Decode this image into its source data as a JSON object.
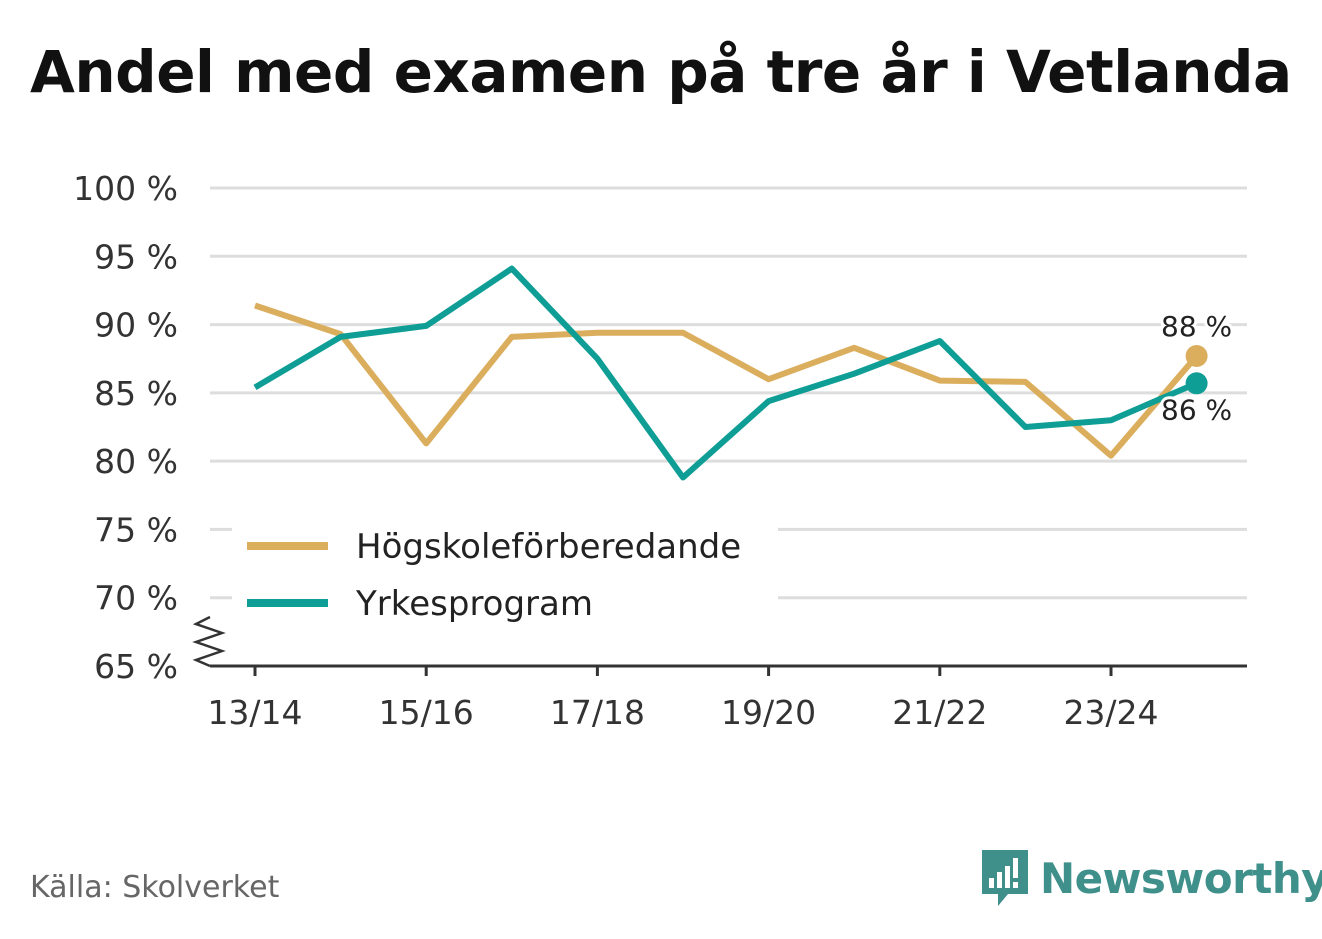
{
  "title": "Andel med examen på tre år i Vetlanda",
  "source": "Källa: Skolverket",
  "brand": "Newsworthy",
  "chart_data": {
    "type": "line",
    "x": [
      "13/14",
      "14/15",
      "15/16",
      "16/17",
      "17/18",
      "18/19",
      "19/20",
      "20/21",
      "21/22",
      "22/23",
      "23/24",
      "24/25"
    ],
    "x_tick_labels": [
      "13/14",
      "15/16",
      "17/18",
      "19/20",
      "21/22",
      "23/24"
    ],
    "y_tick_labels": [
      "100 %",
      "95 %",
      "90 %",
      "85 %",
      "80 %",
      "75 %",
      "70 %",
      "65 %"
    ],
    "ylim": [
      65,
      100
    ],
    "y_axis_break": true,
    "grid": true,
    "legend": "bottom-left",
    "series": [
      {
        "name": "Högskoleförberedande",
        "color": "#dbae5e",
        "values": [
          91.4,
          89.3,
          81.3,
          89.1,
          89.4,
          89.4,
          86.0,
          88.3,
          85.9,
          85.8,
          80.4,
          87.7
        ],
        "end_label": "88 %"
      },
      {
        "name": "Yrkesprogram",
        "color": "#0f9e95",
        "values": [
          85.4,
          89.1,
          89.9,
          94.1,
          87.5,
          78.8,
          84.4,
          86.4,
          88.8,
          82.5,
          83.0,
          85.7
        ],
        "end_label": "86 %"
      }
    ]
  }
}
